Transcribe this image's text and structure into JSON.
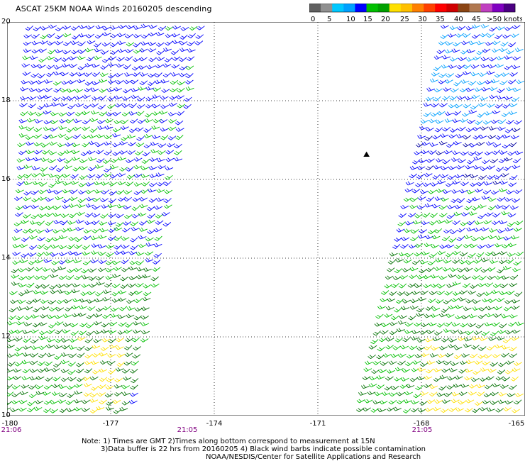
{
  "title": "ASCAT 25KM NOAA Winds 20160205 descending",
  "legend": {
    "colors": [
      "#606060",
      "#909090",
      "#00c8ff",
      "#00a0ff",
      "#0000ff",
      "#00c000",
      "#00a000",
      "#ffe000",
      "#ffc000",
      "#ff8000",
      "#ff4000",
      "#ff0000",
      "#d00000",
      "#8b4513",
      "#b07850",
      "#c040c0",
      "#8000c0",
      "#4b0082"
    ],
    "labels": [
      "0",
      "5",
      "10",
      "15",
      "20",
      "25",
      "30",
      "35",
      "40",
      "45",
      ">50 knots"
    ]
  },
  "map": {
    "lon_range": [
      -180,
      -165
    ],
    "lat_range": [
      10,
      20
    ],
    "y_tick_labels": [
      "20",
      "18",
      "16",
      "14",
      "12",
      "10"
    ],
    "x_tick_labels": [
      "-180",
      "-177",
      "-174",
      "-171",
      "-168",
      "-165"
    ],
    "time_labels": [
      "21:06",
      "21:05",
      "21:05"
    ],
    "island_marker": "⛰",
    "wind_colors": {
      "light_blue": "#00a0ff",
      "blue": "#0000ff",
      "dark_blue": "#0000a0",
      "green": "#00c000",
      "dark_green": "#007000",
      "yellow": "#ffe000"
    }
  },
  "notes": {
    "line1": "Note: 1) Times are GMT 2)Times along bottom correspond to measurement at 15N",
    "line2": "3)Data buffer is 22 hrs from 20160205 4) Black wind barbs indicate possible contamination",
    "line3": "NOAA/NESDIS/Center for Satellite Applications and Research"
  }
}
